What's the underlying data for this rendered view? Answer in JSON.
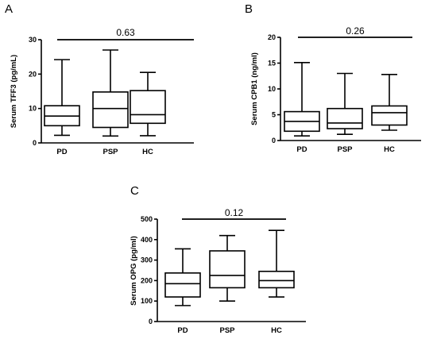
{
  "chart_data": [
    {
      "type": "box",
      "panel_label": "A",
      "ylabel": "Serum TFF3 (pg/mL)",
      "categories": [
        "PD",
        "PSP",
        "HC"
      ],
      "ylim": [
        0,
        30
      ],
      "yticks": [
        0,
        10,
        20,
        30
      ],
      "boxes": [
        {
          "min": 2.2,
          "q1": 5.0,
          "median": 7.8,
          "q3": 10.8,
          "max": 24.2
        },
        {
          "min": 2.0,
          "q1": 4.5,
          "median": 10.0,
          "q3": 14.8,
          "max": 27.0
        },
        {
          "min": 2.1,
          "q1": 5.7,
          "median": 8.2,
          "q3": 15.2,
          "max": 20.5
        }
      ],
      "annotation": "0.63"
    },
    {
      "type": "box",
      "panel_label": "B",
      "ylabel": "Serum CPB1 (ng/ml)",
      "categories": [
        "PD",
        "PSP",
        "HC"
      ],
      "ylim": [
        0,
        20
      ],
      "yticks": [
        0,
        5,
        10,
        15,
        20
      ],
      "boxes": [
        {
          "min": 0.9,
          "q1": 1.8,
          "median": 3.7,
          "q3": 5.6,
          "max": 15.1
        },
        {
          "min": 1.2,
          "q1": 2.3,
          "median": 3.4,
          "q3": 6.2,
          "max": 13.0
        },
        {
          "min": 2.0,
          "q1": 3.0,
          "median": 5.4,
          "q3": 6.7,
          "max": 12.8
        }
      ],
      "annotation": "0.26"
    },
    {
      "type": "box",
      "panel_label": "C",
      "ylabel": "Serum OPG (pg/ml)",
      "categories": [
        "PD",
        "PSP",
        "HC"
      ],
      "ylim": [
        0,
        500
      ],
      "yticks": [
        0,
        100,
        200,
        300,
        400,
        500
      ],
      "boxes": [
        {
          "min": 78,
          "q1": 120,
          "median": 185,
          "q3": 237,
          "max": 355
        },
        {
          "min": 100,
          "q1": 165,
          "median": 225,
          "q3": 345,
          "max": 420
        },
        {
          "min": 120,
          "q1": 165,
          "median": 200,
          "q3": 245,
          "max": 445
        }
      ],
      "annotation": "0.12"
    }
  ]
}
